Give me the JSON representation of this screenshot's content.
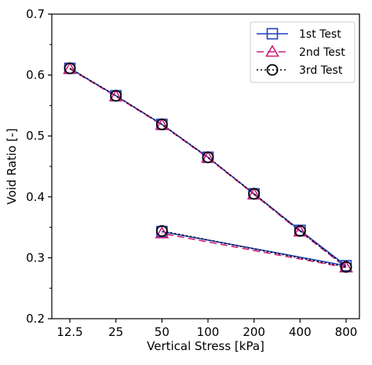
{
  "chart_data": {
    "type": "line",
    "x_scale": "log2",
    "x_ticks": [
      12.5,
      25,
      50,
      100,
      200,
      400,
      800
    ],
    "x_tick_labels": [
      "12.5",
      "25",
      "50",
      "100",
      "200",
      "400",
      "800"
    ],
    "xlabel": "Vertical Stress [kPa]",
    "ylabel": "Void Ratio [-]",
    "ylim": [
      0.2,
      0.7
    ],
    "y_ticks": [
      0.2,
      0.3,
      0.4,
      0.5,
      0.6,
      0.7
    ],
    "y_tick_labels": [
      "0.2",
      "0.3",
      "0.4",
      "0.5",
      "0.6",
      "0.7"
    ],
    "grid": false,
    "legend_position": "top-right",
    "series": [
      {
        "name": "1st Test",
        "color": "#1f3fbf",
        "marker": "square",
        "line_style": "solid",
        "x": [
          12.5,
          25,
          50,
          100,
          200,
          400,
          800,
          50
        ],
        "y": [
          0.611,
          0.566,
          0.519,
          0.465,
          0.405,
          0.345,
          0.287,
          0.343
        ]
      },
      {
        "name": "2nd Test",
        "color": "#cc1f7a",
        "marker": "triangle",
        "line_style": "dashed",
        "x": [
          12.5,
          25,
          50,
          100,
          200,
          400,
          800,
          50
        ],
        "y": [
          0.61,
          0.565,
          0.518,
          0.464,
          0.404,
          0.343,
          0.284,
          0.34
        ]
      },
      {
        "name": "3rd Test",
        "color": "#000000",
        "marker": "circle",
        "line_style": "dotted",
        "x": [
          12.5,
          25,
          50,
          100,
          200,
          400,
          800,
          50
        ],
        "y": [
          0.611,
          0.566,
          0.519,
          0.465,
          0.405,
          0.344,
          0.285,
          0.344
        ]
      }
    ]
  }
}
